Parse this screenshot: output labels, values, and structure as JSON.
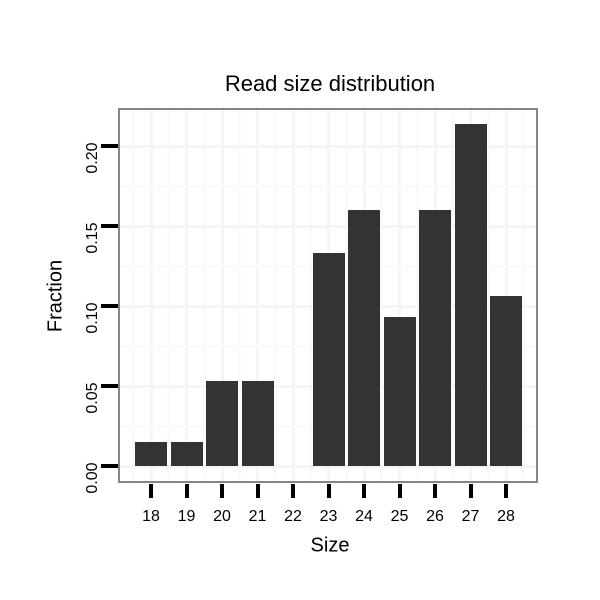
{
  "chart_data": {
    "type": "bar",
    "title": "Read size distribution",
    "xlabel": "Size",
    "ylabel": "Fraction",
    "categories": [
      "18",
      "19",
      "20",
      "21",
      "22",
      "23",
      "24",
      "25",
      "26",
      "27",
      "28"
    ],
    "values": [
      0.015,
      0.015,
      0.053,
      0.053,
      0,
      0.133,
      0.16,
      0.093,
      0.16,
      0.214,
      0.106
    ],
    "y_tick_labels": [
      "0.00",
      "0.05",
      "0.10",
      "0.15",
      "0.20"
    ],
    "y_tick_values": [
      0,
      0.05,
      0.1,
      0.15,
      0.2
    ],
    "y_minor_values": [
      0.025,
      0.075,
      0.125,
      0.175
    ],
    "ylim": [
      -0.011,
      0.224
    ],
    "grid": "major and minor, very faint, on white panel",
    "legend": "none",
    "colors": {
      "bar": "#333333",
      "panel_border": "#858585",
      "grid_major": "#f5f5f5",
      "grid_minor": "#fafafa",
      "background": "#ffffff",
      "tick": "#000000",
      "text": "#000000"
    }
  }
}
